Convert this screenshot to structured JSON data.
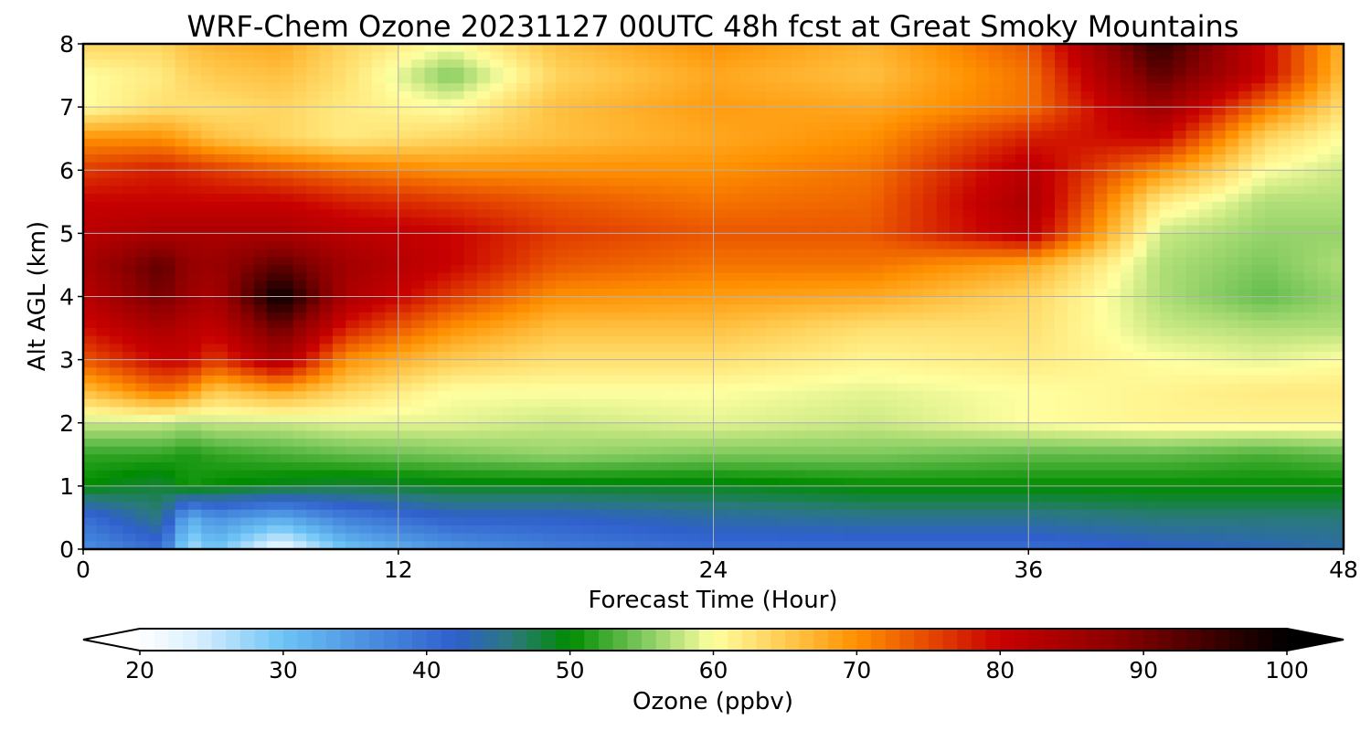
{
  "chart_data": {
    "type": "heatmap",
    "title": "WRF-Chem Ozone  20231127 00UTC 48h fcst at Great Smoky Mountains",
    "xlabel": "Forecast Time (Hour)",
    "ylabel": "Alt AGL (km)",
    "xlim": [
      0,
      48
    ],
    "ylim": [
      0,
      8
    ],
    "x_ticks": [
      "0",
      "12",
      "24",
      "36",
      "48"
    ],
    "y_ticks": [
      "0",
      "1",
      "2",
      "3",
      "4",
      "5",
      "6",
      "7",
      "8"
    ],
    "grid": true,
    "colorbar": {
      "label": "Ozone  (ppbv)",
      "range": [
        20,
        100
      ],
      "extend": "both",
      "ticks": [
        "20",
        "30",
        "40",
        "50",
        "60",
        "70",
        "80",
        "90",
        "100"
      ],
      "stops": [
        {
          "value": 20,
          "color": "#ffffff"
        },
        {
          "value": 24,
          "color": "#d9efff"
        },
        {
          "value": 30,
          "color": "#6cc3f5"
        },
        {
          "value": 36,
          "color": "#4a8fe0"
        },
        {
          "value": 42,
          "color": "#2f5fcc"
        },
        {
          "value": 46,
          "color": "#2a7a7a"
        },
        {
          "value": 50,
          "color": "#008c00"
        },
        {
          "value": 55,
          "color": "#7cc85c"
        },
        {
          "value": 60,
          "color": "#ffffa0"
        },
        {
          "value": 66,
          "color": "#ffc040"
        },
        {
          "value": 70,
          "color": "#ff9000"
        },
        {
          "value": 76,
          "color": "#e03a00"
        },
        {
          "value": 80,
          "color": "#c80000"
        },
        {
          "value": 88,
          "color": "#8c0000"
        },
        {
          "value": 100,
          "color": "#000000"
        }
      ]
    },
    "x": [
      0,
      3,
      4,
      5,
      7.5,
      10,
      14,
      18,
      24,
      30,
      36,
      41,
      45,
      48
    ],
    "y": [
      0,
      0.5,
      1,
      1.5,
      2,
      2.5,
      3,
      3.5,
      4,
      4.5,
      5,
      5.5,
      6,
      6.5,
      7,
      7.5,
      8
    ],
    "z": [
      [
        36,
        40,
        26,
        30,
        21,
        30,
        35,
        38,
        40,
        40,
        40,
        42,
        43,
        44
      ],
      [
        40,
        46,
        32,
        36,
        33,
        38,
        42,
        42,
        44,
        45,
        45,
        46,
        46,
        46
      ],
      [
        50,
        48,
        51,
        50,
        49,
        48,
        49,
        49,
        49,
        50,
        50,
        50,
        50,
        50
      ],
      [
        52,
        52,
        51,
        52,
        53,
        54,
        55,
        56,
        55,
        55,
        54,
        54,
        53,
        54
      ],
      [
        58,
        58,
        57,
        58,
        58,
        59,
        59,
        58,
        59,
        58,
        60,
        61,
        61,
        61
      ],
      [
        66,
        72,
        70,
        65,
        68,
        64,
        60,
        60,
        60,
        59,
        60,
        61,
        62,
        62
      ],
      [
        74,
        80,
        80,
        76,
        84,
        70,
        65,
        63,
        63,
        61,
        62,
        60,
        59,
        60
      ],
      [
        79,
        84,
        82,
        81,
        91,
        78,
        70,
        66,
        66,
        63,
        63,
        58,
        57,
        57
      ],
      [
        82,
        90,
        86,
        84,
        100,
        84,
        76,
        70,
        69,
        68,
        64,
        57,
        54,
        56
      ],
      [
        84,
        92,
        87,
        86,
        92,
        85,
        80,
        74,
        72,
        72,
        68,
        57,
        55,
        57
      ],
      [
        82,
        84,
        84,
        84,
        84,
        82,
        80,
        76,
        74,
        74,
        82,
        58,
        56,
        56
      ],
      [
        80,
        80,
        80,
        80,
        80,
        78,
        76,
        74,
        72,
        73,
        84,
        62,
        57,
        57
      ],
      [
        76,
        78,
        77,
        76,
        74,
        72,
        70,
        70,
        70,
        72,
        82,
        70,
        60,
        58
      ],
      [
        70,
        70,
        68,
        66,
        64,
        62,
        64,
        66,
        68,
        70,
        78,
        80,
        64,
        60
      ],
      [
        60,
        63,
        63,
        63,
        64,
        62,
        60,
        66,
        69,
        68,
        72,
        86,
        72,
        63
      ],
      [
        60,
        62,
        64,
        65,
        66,
        63,
        55,
        64,
        68,
        66,
        72,
        92,
        80,
        66
      ],
      [
        64,
        64,
        66,
        67,
        68,
        64,
        60,
        66,
        70,
        67,
        74,
        96,
        80,
        67
      ]
    ]
  }
}
